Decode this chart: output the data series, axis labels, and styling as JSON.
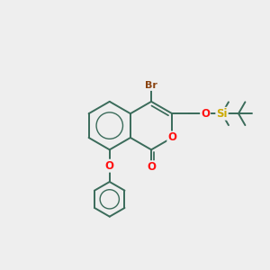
{
  "bg_color": "#eeeeee",
  "bond_color": "#3a6b5a",
  "bond_width": 1.4,
  "br_color": "#8B4513",
  "o_color": "#ff1111",
  "si_color": "#ccaa00",
  "figsize": [
    3.0,
    3.0
  ],
  "dpi": 100,
  "xlim": [
    0,
    10
  ],
  "ylim": [
    0,
    10
  ]
}
